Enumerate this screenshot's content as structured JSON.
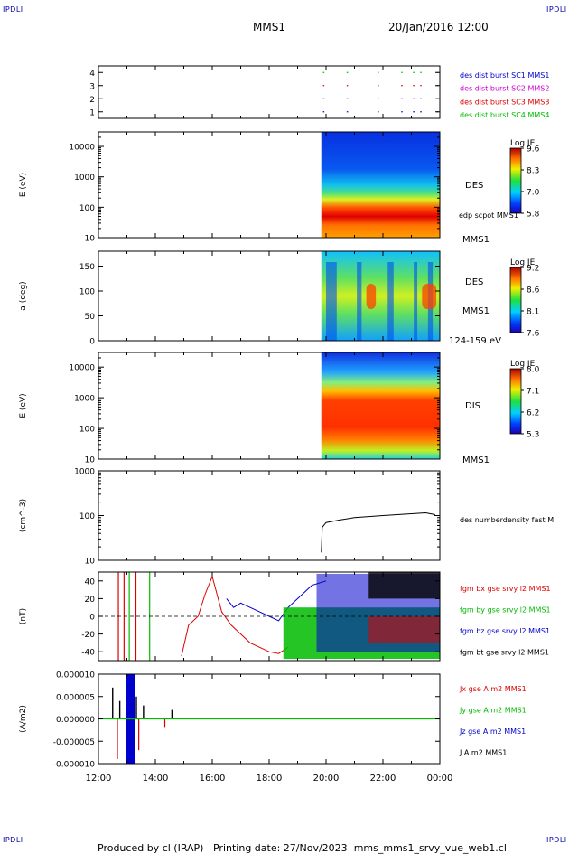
{
  "header": {
    "corner_label": "IPDLI",
    "title": "MMS1",
    "datetime": "20/Jan/2016 12:00"
  },
  "footer": {
    "produced_by": "Produced by cl (IRAP)",
    "printing_date": "Printing date: 27/Nov/2023",
    "file_name": "mms_mms1_srvy_vue_web1.cl"
  },
  "colors": {
    "mms1": "#0000cc",
    "mms2": "#cc00cc",
    "mms3": "#dd0000",
    "mms4": "#00bb00",
    "black": "#000000"
  },
  "chart_data": [
    {
      "type": "scatter",
      "ylabel": "",
      "ylim": [
        1,
        4
      ],
      "yticks": [
        "1",
        "2",
        "3",
        "4"
      ],
      "legend": [
        {
          "label": "des dist burst SC1 MMS1",
          "color": "#0000cc"
        },
        {
          "label": "des dist burst SC2 MMS2",
          "color": "#cc00cc"
        },
        {
          "label": "des dist burst SC3 MMS3",
          "color": "#dd0000"
        },
        {
          "label": "des dist burst SC4 MMS4",
          "color": "#00bb00"
        }
      ],
      "x": [
        "19:55",
        "20:45",
        "21:50",
        "22:40",
        "23:05",
        "23:20",
        "23:55"
      ],
      "series": [
        {
          "name": "MMS1",
          "y": 1
        },
        {
          "name": "MMS2",
          "y": 2
        },
        {
          "name": "MMS3",
          "y": 3
        },
        {
          "name": "MMS4",
          "y": 4
        }
      ]
    },
    {
      "type": "heatmap",
      "ylabel": "E (eV)",
      "yscale": "log",
      "ylim": [
        10,
        30000
      ],
      "yticks": [
        "10",
        "100",
        "1000",
        "10000"
      ],
      "data_start": "19:50",
      "side_labels": [
        "DES",
        "edp scpot MMS1",
        "MMS1"
      ],
      "colorbar": {
        "title": "Log JE",
        "ticks": [
          "9.6",
          "8.3",
          "7.0",
          "5.8"
        ]
      },
      "description_bands": [
        {
          "range_eV": [
            10,
            40
          ],
          "level": "orange"
        },
        {
          "range_eV": [
            40,
            150
          ],
          "level": "red"
        },
        {
          "range_eV": [
            150,
            400
          ],
          "level": "yellow-green"
        },
        {
          "range_eV": [
            400,
            1500
          ],
          "level": "cyan"
        },
        {
          "range_eV": [
            1500,
            30000
          ],
          "level": "blue"
        }
      ]
    },
    {
      "type": "heatmap",
      "ylabel": "a (deg)",
      "ylim": [
        0,
        180
      ],
      "yticks": [
        "0",
        "50",
        "100",
        "150"
      ],
      "data_start": "19:50",
      "side_labels": [
        "DES",
        "MMS1",
        "124-159 eV"
      ],
      "colorbar": {
        "title": "Log JE",
        "ticks": [
          "9.2",
          "8.6",
          "8.1",
          "7.6"
        ]
      }
    },
    {
      "type": "heatmap",
      "ylabel": "E (eV)",
      "yscale": "log",
      "ylim": [
        10,
        30000
      ],
      "yticks": [
        "10",
        "100",
        "1000",
        "10000"
      ],
      "data_start": "19:50",
      "side_labels": [
        "DIS",
        "MMS1"
      ],
      "colorbar": {
        "title": "Log JE",
        "ticks": [
          "8.0",
          "7.1",
          "6.2",
          "5.3"
        ]
      }
    },
    {
      "type": "line",
      "ylabel": "(cm^-3)",
      "yscale": "log",
      "ylim": [
        10,
        1000
      ],
      "yticks": [
        "10",
        "100",
        "1000"
      ],
      "series": [
        {
          "name": "des numberdensity fast M",
          "color": "#000000",
          "x": [
            "19:50",
            "19:52",
            "20:00",
            "20:30",
            "21:00",
            "21:30",
            "22:00",
            "22:30",
            "23:00",
            "23:30",
            "23:50"
          ],
          "y": [
            15,
            55,
            70,
            80,
            90,
            95,
            100,
            105,
            110,
            115,
            105
          ]
        }
      ]
    },
    {
      "type": "line",
      "ylabel": "(nT)",
      "ylim": [
        -50,
        50
      ],
      "yticks": [
        "-40",
        "-20",
        "0",
        "20",
        "40"
      ],
      "legend": [
        {
          "label": "fgm bx gse srvy l2 MMS1",
          "color": "#dd0000"
        },
        {
          "label": "fgm by gse srvy l2 MMS1",
          "color": "#00bb00"
        },
        {
          "label": "fgm bz gse srvy l2 MMS1",
          "color": "#0000cc"
        },
        {
          "label": "fgm bt gse srvy l2 MMS1",
          "color": "#000000"
        }
      ],
      "series": [
        {
          "name": "fgm bx gse srvy l2 MMS1",
          "color": "#dd0000",
          "x": [
            "14:55",
            "15:10",
            "15:30",
            "15:45",
            "16:00",
            "16:20",
            "16:40",
            "17:00",
            "17:20",
            "17:40",
            "18:00",
            "18:20",
            "18:40"
          ],
          "y": [
            -45,
            -10,
            0,
            25,
            45,
            5,
            -10,
            -20,
            -30,
            -35,
            -40,
            -42,
            -35
          ]
        },
        {
          "name": "fgm bz gse srvy l2 MMS1",
          "color": "#0000cc",
          "x": [
            "16:30",
            "16:45",
            "17:00",
            "17:20",
            "17:40",
            "18:00",
            "18:20",
            "18:40",
            "19:00",
            "19:30",
            "20:00"
          ],
          "y": [
            20,
            10,
            15,
            10,
            5,
            0,
            -5,
            10,
            20,
            35,
            40
          ]
        }
      ]
    },
    {
      "type": "line",
      "ylabel": "(A/m2)",
      "ylim": [
        -1e-05,
        1e-05
      ],
      "yticks": [
        "-0.000010",
        "-0.000005",
        "0.000000",
        "0.000005",
        "0.000010"
      ],
      "xticks": [
        "12:00",
        "14:00",
        "16:00",
        "18:00",
        "20:00",
        "22:00",
        "00:00"
      ],
      "legend": [
        {
          "label": "Jx gse A m2 MMS1",
          "color": "#dd0000"
        },
        {
          "label": "Jy gse A m2 MMS1",
          "color": "#00bb00"
        },
        {
          "label": "Jz gse A m2 MMS1",
          "color": "#0000cc"
        },
        {
          "label": "J A m2 MMS1",
          "color": "#000000"
        }
      ]
    }
  ]
}
